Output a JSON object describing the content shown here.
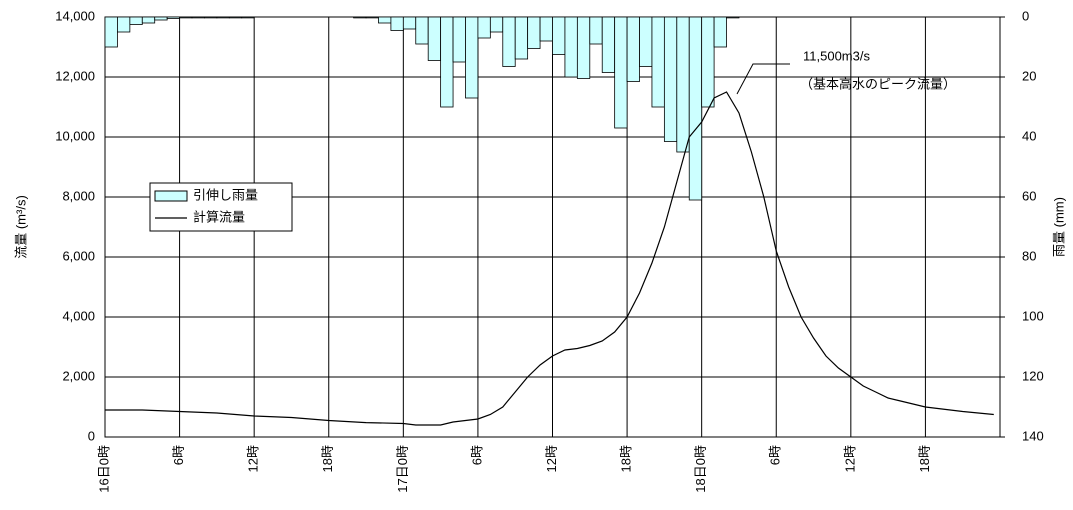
{
  "chart_data": {
    "type": "combo",
    "ylabel": "流量 (m³/s)",
    "y2label": "雨量 (mm)",
    "xlim": [
      0,
      72
    ],
    "xticks": [
      {
        "value": 0,
        "label": "16日0時"
      },
      {
        "value": 6,
        "label": "6時"
      },
      {
        "value": 12,
        "label": "12時"
      },
      {
        "value": 18,
        "label": "18時"
      },
      {
        "value": 24,
        "label": "17日0時"
      },
      {
        "value": 30,
        "label": "6時"
      },
      {
        "value": 36,
        "label": "12時"
      },
      {
        "value": 42,
        "label": "18時"
      },
      {
        "value": 48,
        "label": "18日0時"
      },
      {
        "value": 54,
        "label": "6時"
      },
      {
        "value": 60,
        "label": "12時"
      },
      {
        "value": 66,
        "label": "18時"
      }
    ],
    "ylim": [
      0,
      14000
    ],
    "yticks": [
      0,
      {
        "value": 2000,
        "label": "2,000"
      },
      {
        "value": 4000,
        "label": "4,000"
      },
      {
        "value": 6000,
        "label": "6,000"
      },
      {
        "value": 8000,
        "label": "8,000"
      },
      {
        "value": 10000,
        "label": "10,000"
      },
      {
        "value": 12000,
        "label": "12,000"
      },
      {
        "value": 14000,
        "label": "14,000"
      }
    ],
    "y2lim": [
      140,
      0
    ],
    "y2ticks": [
      0,
      20,
      40,
      60,
      80,
      100,
      120,
      140
    ],
    "grid": true,
    "annotations": [
      "11,500m3/s",
      "（基本高水のピーク流量）"
    ],
    "series": [
      {
        "name": "引伸し雨量",
        "type": "bar",
        "axis": "y2",
        "color": "#ccffff",
        "x": [
          0,
          1,
          2,
          3,
          4,
          5,
          6,
          7,
          8,
          9,
          10,
          11,
          20,
          21,
          22,
          23,
          24,
          25,
          26,
          27,
          28,
          29,
          30,
          31,
          32,
          33,
          34,
          35,
          36,
          37,
          38,
          39,
          40,
          41,
          42,
          43,
          44,
          45,
          46,
          47,
          48,
          49,
          50
        ],
        "values": [
          10,
          5,
          2.5,
          2,
          1,
          0.5,
          0.3,
          0.3,
          0.3,
          0.3,
          0.3,
          0.3,
          0.3,
          0.3,
          2,
          4.5,
          4,
          9,
          14.5,
          30,
          15,
          27,
          7,
          5,
          16.5,
          14,
          10.5,
          8,
          12.5,
          20,
          20.5,
          9,
          18.5,
          37,
          21.5,
          16.5,
          30,
          41.5,
          45,
          61,
          30,
          10,
          0.3
        ]
      },
      {
        "name": "計算流量",
        "type": "line",
        "color": "#000000",
        "x": [
          0,
          3,
          6,
          9,
          12,
          15,
          18,
          21,
          24,
          25,
          27,
          28,
          30,
          31,
          32,
          33,
          34,
          35,
          36,
          37,
          38,
          39,
          40,
          41,
          42,
          43,
          44,
          45,
          46,
          47,
          48,
          49,
          50,
          51,
          52,
          53,
          54,
          55,
          56,
          57,
          58,
          59,
          60,
          61,
          62,
          63,
          64,
          66,
          69,
          71.5
        ],
        "values": [
          900,
          900,
          850,
          800,
          700,
          650,
          550,
          480,
          450,
          400,
          400,
          500,
          600,
          750,
          1000,
          1500,
          2000,
          2400,
          2700,
          2900,
          2950,
          3050,
          3200,
          3500,
          4000,
          4800,
          5800,
          7000,
          8500,
          10000,
          10500,
          11300,
          11500,
          10800,
          9500,
          8000,
          6200,
          5000,
          4000,
          3300,
          2700,
          2300,
          2000,
          1700,
          1500,
          1300,
          1200,
          1000,
          850,
          750
        ]
      }
    ]
  }
}
